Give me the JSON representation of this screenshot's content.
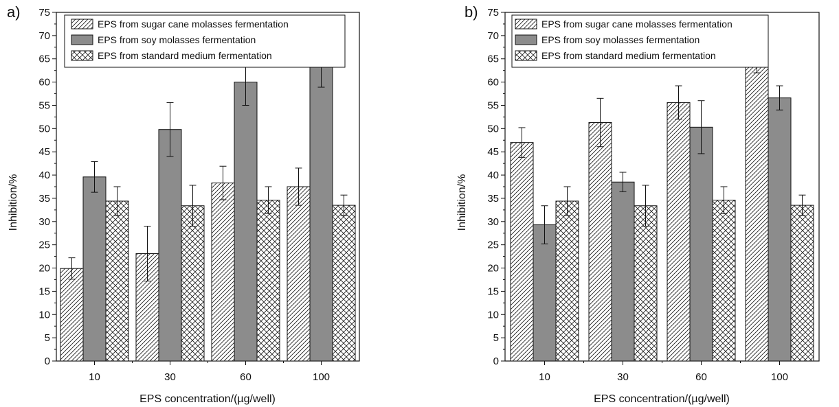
{
  "chart_data": [
    {
      "type": "bar",
      "panel_label": "a)",
      "categories": [
        "10",
        "30",
        "60",
        "100"
      ],
      "xlabel": "EPS concentration/(µg/well)",
      "ylabel": "Inhibition/%",
      "ylim": [
        0,
        75
      ],
      "yticks": [
        "0",
        "5",
        "10",
        "15",
        "20",
        "25",
        "30",
        "35",
        "40",
        "45",
        "50",
        "55",
        "60",
        "65",
        "70",
        "75"
      ],
      "legend_position": "top-left",
      "grid": false,
      "series": [
        {
          "name": "EPS from sugar cane molasses fermentation",
          "pattern": "diagonal-hatch",
          "values": [
            19.9,
            23.1,
            38.3,
            37.5
          ],
          "errors": [
            2.3,
            5.9,
            3.6,
            4.0
          ]
        },
        {
          "name": "EPS from soy molasses fermentation",
          "pattern": "solid-gray",
          "values": [
            39.6,
            49.8,
            60.0,
            65.0
          ],
          "errors": [
            3.3,
            5.8,
            5.0,
            6.1
          ]
        },
        {
          "name": "EPS from standard medium fermentation",
          "pattern": "crosshatch",
          "values": [
            34.4,
            33.4,
            34.6,
            33.5
          ],
          "errors": [
            3.1,
            4.4,
            2.9,
            2.2
          ]
        }
      ]
    },
    {
      "type": "bar",
      "panel_label": "b)",
      "categories": [
        "10",
        "30",
        "60",
        "100"
      ],
      "xlabel": "EPS concentration/(µg/well)",
      "ylabel": "Inhibition/%",
      "ylim": [
        0,
        75
      ],
      "yticks": [
        "0",
        "5",
        "10",
        "15",
        "20",
        "25",
        "30",
        "35",
        "40",
        "45",
        "50",
        "55",
        "60",
        "65",
        "70",
        "75"
      ],
      "legend_position": "top-left",
      "grid": false,
      "series": [
        {
          "name": "EPS from sugar cane molasses fermentation",
          "pattern": "diagonal-hatch",
          "values": [
            47.0,
            51.3,
            55.6,
            67.1
          ],
          "errors": [
            3.2,
            5.2,
            3.6,
            5.1
          ]
        },
        {
          "name": "EPS from soy molasses fermentation",
          "pattern": "solid-gray",
          "values": [
            29.3,
            38.5,
            50.3,
            56.6
          ],
          "errors": [
            4.1,
            2.1,
            5.7,
            2.6
          ]
        },
        {
          "name": "EPS from standard medium fermentation",
          "pattern": "crosshatch",
          "values": [
            34.4,
            33.4,
            34.6,
            33.5
          ],
          "errors": [
            3.1,
            4.4,
            2.9,
            2.2
          ]
        }
      ]
    }
  ],
  "colors": {
    "soy_bar_fill": "#8c8c8c",
    "axis": "#111111",
    "pattern_line": "#222222"
  }
}
